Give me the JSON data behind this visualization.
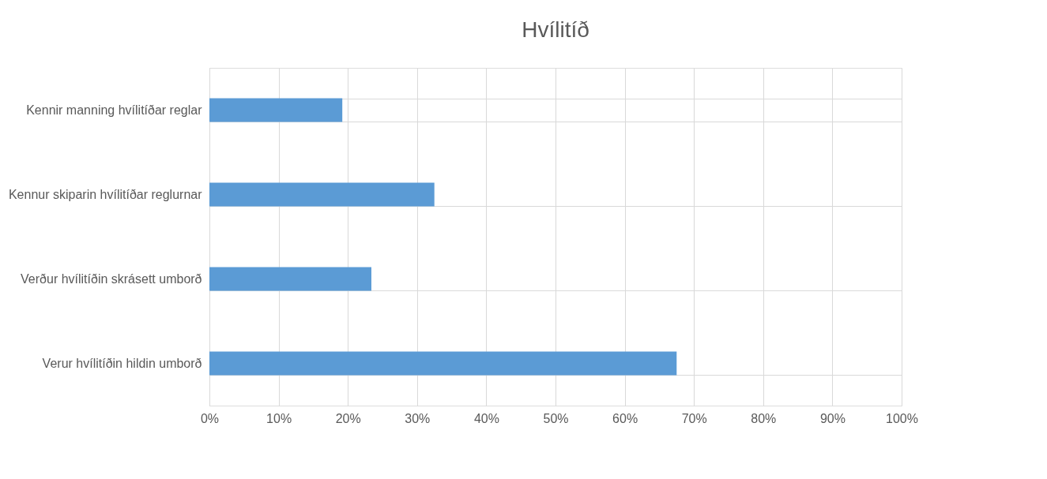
{
  "chart_data": {
    "type": "bar",
    "orientation": "horizontal",
    "title": "Hvílitíð",
    "categories": [
      "Kennir manning hvílitíðar reglar",
      "Kennur skiparin hvílitíðar reglurnar",
      "Verður hvílitíðin skrásett umborð",
      "Verur hvílitíðin hildin umborð"
    ],
    "values": [
      19.2,
      32.5,
      23.4,
      67.5
    ],
    "color": "#5b9bd5",
    "xlim": [
      0,
      100
    ],
    "xticks": [
      {
        "value": 0,
        "label": "0%"
      },
      {
        "value": 10,
        "label": "10%"
      },
      {
        "value": 20,
        "label": "20%"
      },
      {
        "value": 30,
        "label": "30%"
      },
      {
        "value": 40,
        "label": "40%"
      },
      {
        "value": 50,
        "label": "50%"
      },
      {
        "value": 60,
        "label": "60%"
      },
      {
        "value": 70,
        "label": "70%"
      },
      {
        "value": 80,
        "label": "80%"
      },
      {
        "value": 90,
        "label": "90%"
      },
      {
        "value": 100,
        "label": "100%"
      }
    ],
    "grid": true
  }
}
